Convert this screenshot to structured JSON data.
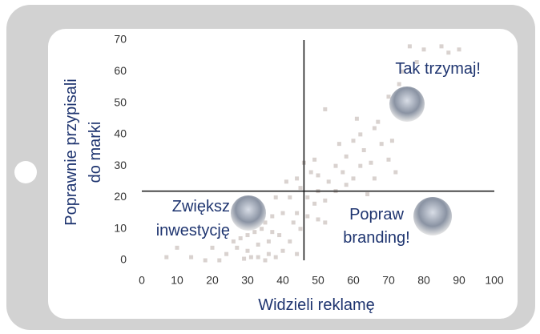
{
  "chart_data": {
    "type": "scatter",
    "xlabel": "Widzieli reklamę",
    "ylabel": [
      "Poprawnie przypisali",
      "do marki"
    ],
    "x": [
      76,
      80,
      85,
      87,
      90,
      78,
      74,
      73,
      70,
      52,
      62,
      60,
      66,
      63,
      68,
      58,
      55,
      62,
      65,
      70,
      57,
      50,
      53,
      48,
      46,
      44,
      45,
      50,
      55,
      58,
      60,
      41,
      38,
      42,
      47,
      49,
      52,
      44,
      40,
      37,
      35,
      34,
      32,
      30,
      28,
      26,
      33,
      36,
      39,
      42,
      40,
      38,
      36,
      33,
      30,
      29,
      27,
      24,
      20,
      18,
      10,
      7,
      14,
      22,
      35,
      31,
      37,
      44,
      45,
      43,
      47,
      50,
      52,
      66,
      72,
      64,
      56,
      49,
      61,
      67,
      71
    ],
    "values": [
      68,
      67,
      68,
      66,
      67,
      63,
      60,
      56,
      52,
      48,
      40,
      38,
      42,
      35,
      37,
      33,
      30,
      30,
      31,
      32,
      28,
      27,
      25,
      28,
      31,
      26,
      23,
      22,
      22,
      24,
      26,
      25,
      20,
      20,
      20,
      18,
      19,
      15,
      15,
      14,
      12,
      10,
      9,
      8,
      7,
      6,
      5,
      6,
      8,
      6,
      3,
      1,
      2,
      1,
      3,
      0.5,
      4,
      2,
      4,
      0,
      4,
      1,
      1,
      0,
      0,
      1,
      9,
      2,
      10,
      12,
      14,
      13,
      12,
      26,
      28,
      21,
      37,
      32,
      45,
      44,
      38
    ],
    "color": "#d9d2cf",
    "xlim": [
      0,
      100
    ],
    "xticks": [
      0,
      10,
      20,
      30,
      40,
      50,
      60,
      70,
      80,
      90,
      100
    ],
    "ylim": [
      0,
      70
    ],
    "yticks": [
      0,
      10,
      20,
      30,
      40,
      50,
      60,
      70
    ],
    "vline": 46,
    "hline": 22,
    "annotations": [
      [
        "Tak trzymaj!"
      ],
      [
        "Zwiększ",
        "inwestycję"
      ],
      [
        "Popraw",
        "branding!"
      ]
    ]
  }
}
